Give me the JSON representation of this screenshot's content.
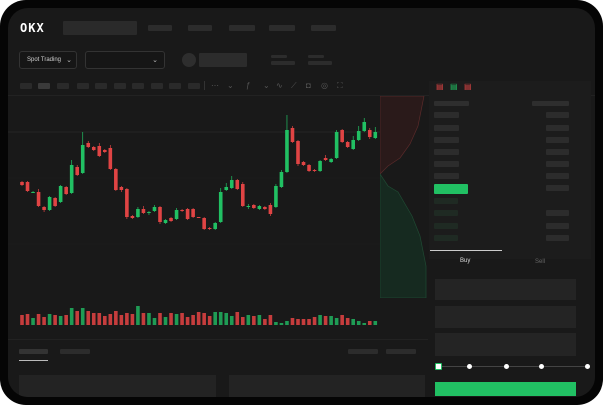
{
  "header": {
    "logo": "OKX",
    "nav_items": [
      "",
      "",
      "",
      "",
      ""
    ]
  },
  "market_bar": {
    "mode_dropdown": "Spot Trading",
    "pair_dropdown": ""
  },
  "toolbar": {
    "icons": [
      "line-chart-icon",
      "chevron-down-icon",
      "indicator-icon",
      "chevron-down-icon",
      "wave-icon",
      "ruler-icon",
      "camera-icon",
      "settings-icon",
      "fullscreen-icon"
    ]
  },
  "order_form": {
    "tabs": [
      "Buy",
      "Sell"
    ],
    "active_tab": "Buy",
    "slider_percent": 0
  },
  "colors": {
    "up": "#21c063",
    "down": "#e04444",
    "background": "#191919",
    "accent": "#21c063"
  },
  "chart_data": {
    "type": "candlestick",
    "candles": [
      [
        118,
        115,
        119,
        114
      ],
      [
        118,
        109,
        119,
        108
      ],
      [
        107,
        108,
        109,
        107
      ],
      [
        108,
        94,
        111,
        93
      ],
      [
        93,
        90,
        94,
        88
      ],
      [
        90,
        103,
        104,
        89
      ],
      [
        102,
        94,
        103,
        93
      ],
      [
        98,
        114,
        115,
        97
      ],
      [
        113,
        106,
        114,
        105
      ],
      [
        107,
        135,
        140,
        106
      ],
      [
        133,
        125,
        135,
        124
      ],
      [
        127,
        155,
        168,
        126
      ],
      [
        157,
        153,
        159,
        152
      ],
      [
        153,
        150,
        154,
        149
      ],
      [
        154,
        144,
        157,
        143
      ],
      [
        150,
        148,
        151,
        147
      ],
      [
        152,
        131,
        155,
        130
      ],
      [
        131,
        110,
        132,
        109
      ],
      [
        113,
        110,
        114,
        108
      ],
      [
        111,
        83,
        112,
        81
      ],
      [
        84,
        82,
        85,
        81
      ],
      [
        83,
        91,
        93,
        82
      ],
      [
        91,
        87,
        94,
        86
      ],
      [
        87,
        88,
        89,
        85
      ],
      [
        89,
        93,
        95,
        88
      ],
      [
        93,
        78,
        94,
        76
      ],
      [
        77,
        80,
        81,
        76
      ],
      [
        82,
        79,
        83,
        78
      ],
      [
        81,
        90,
        92,
        80
      ],
      [
        90,
        89,
        91,
        88
      ],
      [
        91,
        81,
        92,
        80
      ],
      [
        91,
        83,
        92,
        82
      ],
      [
        83,
        82,
        83,
        82
      ],
      [
        82,
        71,
        83,
        70
      ],
      [
        72,
        71,
        73,
        70
      ],
      [
        71,
        77,
        78,
        70
      ],
      [
        78,
        108,
        112,
        77
      ],
      [
        110,
        113,
        117,
        109
      ],
      [
        112,
        120,
        124,
        111
      ],
      [
        120,
        111,
        121,
        110
      ],
      [
        116,
        94,
        118,
        93
      ],
      [
        93,
        94,
        96,
        91
      ],
      [
        95,
        92,
        96,
        91
      ],
      [
        91,
        94,
        95,
        90
      ],
      [
        93,
        91,
        94,
        90
      ],
      [
        95,
        86,
        97,
        84
      ],
      [
        93,
        114,
        116,
        92
      ],
      [
        113,
        128,
        130,
        112
      ],
      [
        128,
        170,
        185,
        127
      ],
      [
        172,
        158,
        174,
        157
      ],
      [
        159,
        136,
        160,
        134
      ],
      [
        138,
        135,
        139,
        134
      ],
      [
        135,
        129,
        136,
        128
      ],
      [
        130,
        129,
        131,
        128
      ],
      [
        129,
        139,
        140,
        128
      ],
      [
        142,
        140,
        145,
        139
      ],
      [
        138,
        141,
        142,
        137
      ],
      [
        142,
        168,
        170,
        141
      ],
      [
        170,
        158,
        171,
        157
      ],
      [
        158,
        153,
        159,
        152
      ],
      [
        151,
        160,
        164,
        150
      ],
      [
        160,
        169,
        174,
        159
      ],
      [
        169,
        178,
        182,
        168
      ],
      [
        170,
        163,
        172,
        161
      ],
      [
        162,
        168,
        173,
        161
      ]
    ],
    "volumes": [
      10,
      11,
      7,
      11,
      8,
      11,
      10,
      9,
      10,
      17,
      14,
      17,
      14,
      12,
      12,
      9,
      11,
      14,
      10,
      12,
      11,
      19,
      12,
      12,
      7,
      12,
      8,
      12,
      11,
      12,
      8,
      10,
      13,
      12,
      9,
      13,
      13,
      12,
      9,
      13,
      8,
      10,
      9,
      10,
      6,
      10,
      3,
      2,
      4,
      7,
      6,
      6,
      6,
      8,
      10,
      9,
      9,
      7,
      10,
      7,
      6,
      4,
      2,
      4,
      4
    ],
    "ylim": [
      10,
      205
    ],
    "reference_line": 168
  }
}
